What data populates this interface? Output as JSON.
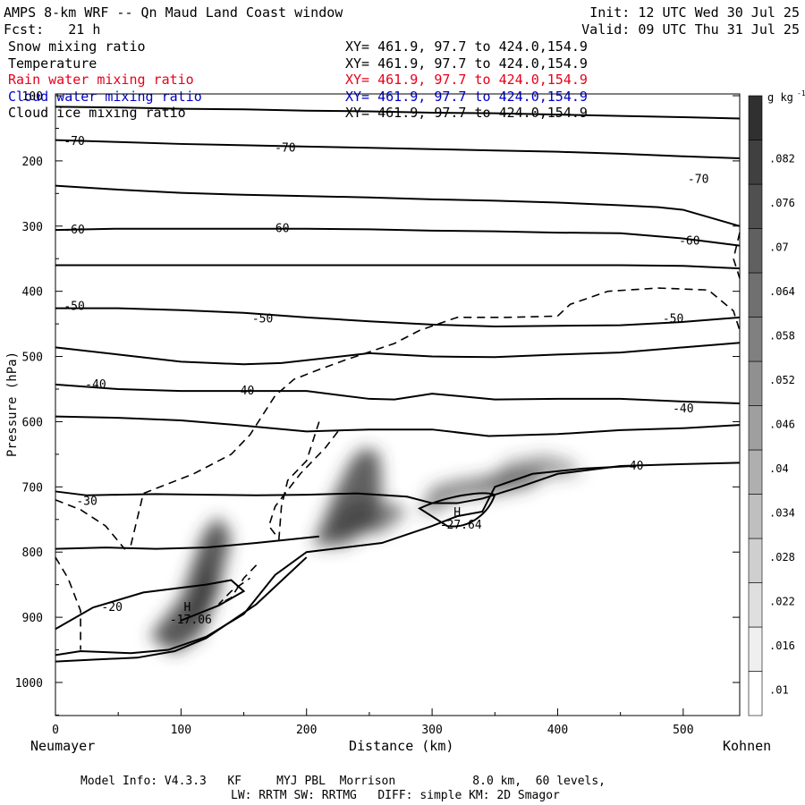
{
  "header": {
    "title": "AMPS 8-km WRF -- Qn Maud Land Coast window",
    "init": "Init: 12 UTC Wed 30 Jul 25",
    "fcst": "Fcst:   21 h",
    "valid": "Valid: 09 UTC Thu 31 Jul 25"
  },
  "fields": [
    {
      "name": "Snow mixing ratio",
      "xy": "XY= 461.9, 97.7 to 424.0,154.9",
      "color": "#000000"
    },
    {
      "name": "Temperature",
      "xy": "XY= 461.9, 97.7 to 424.0,154.9",
      "color": "#000000"
    },
    {
      "name": "Rain water mixing ratio",
      "xy": "XY= 461.9, 97.7 to 424.0,154.9",
      "color": "#e8001c"
    },
    {
      "name": "Cloud water mixing ratio",
      "xy": "XY= 461.9, 97.7 to 424.0,154.9",
      "color": "#0000cc"
    },
    {
      "name": "Cloud ice mixing ratio",
      "xy": "XY= 461.9, 97.7 to 424.0,154.9",
      "color": "#000000"
    }
  ],
  "axes": {
    "ylabel": "Pressure (hPa)",
    "xlabel": "Distance (km)",
    "left_station": "Neumayer",
    "right_station": "Kohnen"
  },
  "colorbar": {
    "unit": "g kg",
    "unit_sup": "-1",
    "ticks": [
      ".01",
      ".016",
      ".022",
      ".028",
      ".034",
      ".04",
      ".046",
      ".052",
      ".058",
      ".064",
      ".07",
      ".076",
      ".082"
    ]
  },
  "footer": {
    "line1": "Model Info: V4.3.3   KF     MYJ PBL  Morrison           8.0 km,  60 levels,",
    "line2": "LW: RRTM SW: RRTMG   DIFF: simple KM: 2D Smagor"
  },
  "chart_data": {
    "type": "cross-section contour",
    "xlim": [
      0,
      545
    ],
    "ylim": [
      1050,
      100
    ],
    "x_ticks": [
      0,
      100,
      200,
      300,
      400,
      500
    ],
    "y_ticks": [
      100,
      200,
      300,
      400,
      500,
      600,
      700,
      800,
      900,
      1000
    ],
    "temperature_labels": [
      {
        "text": "-70",
        "x": 15,
        "p": 170
      },
      {
        "text": "-70",
        "x": 183,
        "p": 180
      },
      {
        "text": "-70",
        "x": 512,
        "p": 228
      },
      {
        "text": "-60",
        "x": 15,
        "p": 306
      },
      {
        "text": "-60",
        "x": 178,
        "p": 304
      },
      {
        "text": "-60",
        "x": 505,
        "p": 323
      },
      {
        "text": "-50",
        "x": 15,
        "p": 423
      },
      {
        "text": "-50",
        "x": 165,
        "p": 442
      },
      {
        "text": "-50",
        "x": 492,
        "p": 442
      },
      {
        "text": "-40",
        "x": 32,
        "p": 543
      },
      {
        "text": "-40",
        "x": 150,
        "p": 553
      },
      {
        "text": "-40",
        "x": 500,
        "p": 580
      },
      {
        "text": "-40",
        "x": 460,
        "p": 668
      },
      {
        "text": "-30",
        "x": 25,
        "p": 722
      },
      {
        "text": "-20",
        "x": 45,
        "p": 885
      }
    ],
    "highs": [
      {
        "label": "H",
        "value": "-17.06",
        "x": 105,
        "p": 890
      },
      {
        "label": "H",
        "value": "-27.64",
        "x": 320,
        "p": 745
      }
    ],
    "temperature_lines": [
      {
        "x": [
          0,
          50,
          100,
          150,
          200,
          250,
          300,
          350,
          400,
          450,
          500,
          545
        ],
        "p": [
          117,
          118,
          120,
          121,
          123,
          124,
          126,
          127,
          129,
          131,
          133,
          135
        ]
      },
      {
        "x": [
          0,
          50,
          100,
          150,
          200,
          250,
          300,
          350,
          400,
          450,
          500,
          545
        ],
        "p": [
          168,
          171,
          174,
          176,
          178,
          180,
          182,
          184,
          186,
          189,
          193,
          196
        ]
      },
      {
        "x": [
          0,
          50,
          100,
          150,
          200,
          250,
          300,
          350,
          400,
          450,
          480,
          500,
          545
        ],
        "p": [
          238,
          244,
          249,
          252,
          254,
          256,
          259,
          261,
          264,
          268,
          271,
          275,
          300
        ]
      },
      {
        "x": [
          0,
          50,
          100,
          150,
          200,
          250,
          300,
          350,
          400,
          450,
          500,
          545
        ],
        "p": [
          306,
          304,
          304,
          304,
          304,
          305,
          307,
          308,
          310,
          311,
          319,
          330
        ]
      },
      {
        "x": [
          0,
          100,
          200,
          300,
          400,
          450,
          500,
          545
        ],
        "p": [
          360,
          360,
          360,
          360,
          360,
          360,
          361,
          365
        ]
      },
      {
        "x": [
          0,
          50,
          100,
          150,
          200,
          250,
          300,
          350,
          400,
          450,
          500,
          545
        ],
        "p": [
          426,
          426,
          429,
          433,
          440,
          446,
          451,
          454,
          453,
          452,
          447,
          440
        ]
      },
      {
        "x": [
          0,
          50,
          100,
          150,
          180,
          250,
          300,
          350,
          400,
          450,
          500,
          545
        ],
        "p": [
          486,
          497,
          508,
          512,
          510,
          495,
          500,
          501,
          497,
          494,
          486,
          479
        ]
      },
      {
        "x": [
          0,
          50,
          100,
          150,
          200,
          250,
          270,
          300,
          350,
          400,
          450,
          500,
          545
        ],
        "p": [
          543,
          550,
          553,
          553,
          553,
          565,
          566,
          557,
          566,
          565,
          565,
          569,
          572
        ]
      },
      {
        "x": [
          0,
          50,
          100,
          150,
          200,
          250,
          300,
          345,
          400,
          450,
          500,
          545
        ],
        "p": [
          592,
          594,
          598,
          606,
          615,
          612,
          612,
          622,
          619,
          613,
          610,
          605
        ]
      }
    ],
    "series_color_ramp": [
      "#ffffff",
      "#303030"
    ]
  }
}
